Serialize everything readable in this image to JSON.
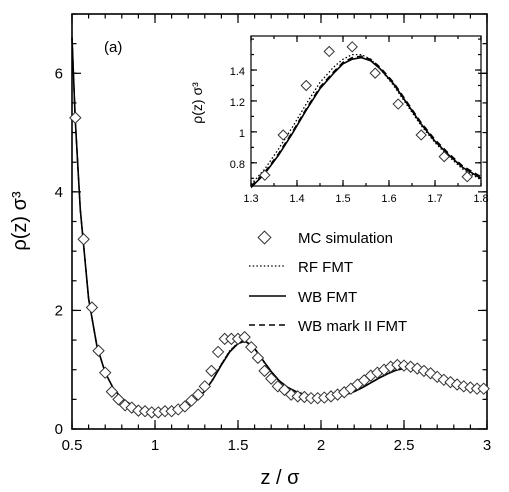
{
  "chart_data": [
    {
      "type": "line",
      "panel_label": "(a)",
      "xlabel": "z / σ",
      "ylabel": "ρ(z) σ³",
      "xlim": [
        0.5,
        3.0
      ],
      "ylim": [
        0,
        7
      ],
      "xticks": [
        0.5,
        1,
        1.5,
        2,
        2.5,
        3
      ],
      "xtick_labels": [
        "0.5",
        "1",
        "1.5",
        "2",
        "2.5",
        "3"
      ],
      "yticks": [
        0,
        2,
        4,
        6
      ],
      "ytick_labels": [
        "0",
        "2",
        "4",
        "6"
      ],
      "legend_position": "lower-right",
      "scatter_series": {
        "name": "MC simulation",
        "x": [
          0.52,
          0.57,
          0.62,
          0.66,
          0.7,
          0.74,
          0.78,
          0.82,
          0.86,
          0.9,
          0.94,
          0.98,
          1.02,
          1.06,
          1.1,
          1.14,
          1.18,
          1.22,
          1.26,
          1.3,
          1.34,
          1.38,
          1.42,
          1.46,
          1.5,
          1.54,
          1.58,
          1.62,
          1.66,
          1.7,
          1.74,
          1.78,
          1.82,
          1.86,
          1.9,
          1.94,
          1.98,
          2.02,
          2.06,
          2.1,
          2.14,
          2.18,
          2.22,
          2.26,
          2.3,
          2.34,
          2.38,
          2.42,
          2.46,
          2.5,
          2.54,
          2.58,
          2.62,
          2.66,
          2.7,
          2.74,
          2.78,
          2.82,
          2.86,
          2.9,
          2.94,
          2.98
        ],
        "y": [
          5.25,
          3.2,
          2.05,
          1.32,
          0.95,
          0.63,
          0.5,
          0.4,
          0.36,
          0.31,
          0.3,
          0.28,
          0.28,
          0.3,
          0.3,
          0.33,
          0.38,
          0.48,
          0.58,
          0.72,
          0.98,
          1.3,
          1.52,
          1.52,
          1.52,
          1.55,
          1.38,
          1.2,
          0.98,
          0.85,
          0.72,
          0.66,
          0.58,
          0.55,
          0.54,
          0.52,
          0.52,
          0.53,
          0.55,
          0.58,
          0.62,
          0.68,
          0.75,
          0.82,
          0.9,
          0.95,
          1.0,
          1.05,
          1.08,
          1.07,
          1.05,
          1.02,
          0.98,
          0.94,
          0.88,
          0.83,
          0.79,
          0.75,
          0.72,
          0.7,
          0.68,
          0.68
        ]
      },
      "curve_x": [
        0.5,
        0.52,
        0.55,
        0.6,
        0.65,
        0.7,
        0.75,
        0.8,
        0.85,
        0.9,
        0.95,
        1.0,
        1.05,
        1.1,
        1.15,
        1.2,
        1.25,
        1.3,
        1.35,
        1.4,
        1.45,
        1.5,
        1.53,
        1.55,
        1.6,
        1.65,
        1.7,
        1.75,
        1.8,
        1.85,
        1.9,
        1.95,
        2.0,
        2.05,
        2.1,
        2.15,
        2.2,
        2.25,
        2.3,
        2.35,
        2.4,
        2.45,
        2.5,
        2.55,
        2.6,
        2.65,
        2.7,
        2.75,
        2.8,
        2.85,
        2.9,
        2.95,
        3.0
      ],
      "series": [
        {
          "name": "RF FMT",
          "line_style": "dotted",
          "y": [
            6.6,
            5.2,
            3.7,
            2.2,
            1.4,
            0.95,
            0.68,
            0.52,
            0.42,
            0.36,
            0.32,
            0.3,
            0.3,
            0.31,
            0.34,
            0.4,
            0.5,
            0.64,
            0.85,
            1.1,
            1.32,
            1.45,
            1.49,
            1.48,
            1.35,
            1.15,
            0.96,
            0.8,
            0.7,
            0.63,
            0.58,
            0.55,
            0.53,
            0.53,
            0.55,
            0.58,
            0.63,
            0.7,
            0.78,
            0.86,
            0.93,
            0.99,
            1.02,
            1.03,
            1.01,
            0.97,
            0.92,
            0.86,
            0.81,
            0.76,
            0.72,
            0.69,
            0.68
          ]
        },
        {
          "name": "WB FMT",
          "line_style": "solid",
          "y": [
            6.6,
            5.2,
            3.7,
            2.2,
            1.4,
            0.95,
            0.68,
            0.52,
            0.42,
            0.36,
            0.32,
            0.3,
            0.3,
            0.31,
            0.34,
            0.4,
            0.5,
            0.64,
            0.84,
            1.08,
            1.3,
            1.44,
            1.47,
            1.47,
            1.36,
            1.16,
            0.97,
            0.81,
            0.7,
            0.63,
            0.58,
            0.55,
            0.53,
            0.53,
            0.55,
            0.58,
            0.63,
            0.7,
            0.78,
            0.86,
            0.93,
            0.99,
            1.02,
            1.03,
            1.01,
            0.97,
            0.92,
            0.86,
            0.81,
            0.76,
            0.72,
            0.69,
            0.68
          ]
        },
        {
          "name": "WB mark II FMT",
          "line_style": "dashed",
          "y": [
            6.6,
            5.2,
            3.7,
            2.2,
            1.4,
            0.95,
            0.68,
            0.52,
            0.42,
            0.36,
            0.32,
            0.3,
            0.3,
            0.31,
            0.34,
            0.4,
            0.5,
            0.64,
            0.84,
            1.09,
            1.31,
            1.45,
            1.48,
            1.48,
            1.36,
            1.16,
            0.97,
            0.81,
            0.7,
            0.63,
            0.58,
            0.55,
            0.53,
            0.53,
            0.55,
            0.58,
            0.63,
            0.7,
            0.78,
            0.86,
            0.93,
            0.99,
            1.02,
            1.03,
            1.01,
            0.97,
            0.92,
            0.86,
            0.81,
            0.76,
            0.72,
            0.69,
            0.68
          ]
        }
      ]
    },
    {
      "type": "line",
      "panel": "inset",
      "xlabel": "",
      "ylabel": "ρ(z) σ³",
      "xlim": [
        1.3,
        1.8
      ],
      "ylim": [
        0.65,
        1.62
      ],
      "xticks": [
        1.3,
        1.4,
        1.5,
        1.6,
        1.7,
        1.8
      ],
      "xtick_labels": [
        "1.3",
        "1.4",
        "1.5",
        "1.6",
        "1.7",
        "1.8"
      ],
      "yticks": [
        0.8,
        1.0,
        1.2,
        1.4
      ],
      "ytick_labels": [
        "0.8",
        "1",
        "1.2",
        "1.4"
      ],
      "scatter_series": {
        "name": "MC simulation",
        "x": [
          1.33,
          1.37,
          1.42,
          1.47,
          1.52,
          1.57,
          1.62,
          1.67,
          1.72,
          1.77
        ],
        "y": [
          0.72,
          0.98,
          1.3,
          1.52,
          1.55,
          1.38,
          1.18,
          0.98,
          0.84,
          0.71
        ]
      },
      "curve_x": [
        1.3,
        1.33,
        1.36,
        1.39,
        1.42,
        1.45,
        1.48,
        1.5,
        1.52,
        1.54,
        1.56,
        1.58,
        1.61,
        1.64,
        1.67,
        1.7,
        1.73,
        1.76,
        1.8
      ],
      "series": [
        {
          "name": "RF FMT",
          "line_style": "dotted",
          "y": [
            0.66,
            0.76,
            0.89,
            1.03,
            1.18,
            1.32,
            1.42,
            1.47,
            1.5,
            1.5,
            1.47,
            1.41,
            1.3,
            1.17,
            1.04,
            0.93,
            0.84,
            0.76,
            0.69
          ]
        },
        {
          "name": "WB FMT",
          "line_style": "solid",
          "y": [
            0.64,
            0.73,
            0.85,
            0.99,
            1.14,
            1.28,
            1.38,
            1.44,
            1.47,
            1.48,
            1.46,
            1.41,
            1.31,
            1.18,
            1.05,
            0.94,
            0.85,
            0.77,
            0.7
          ]
        },
        {
          "name": "WB mark II FMT",
          "line_style": "dashed",
          "y": [
            0.65,
            0.74,
            0.86,
            1.0,
            1.15,
            1.29,
            1.39,
            1.45,
            1.48,
            1.49,
            1.47,
            1.42,
            1.32,
            1.19,
            1.06,
            0.95,
            0.86,
            0.78,
            0.71
          ]
        }
      ]
    }
  ]
}
